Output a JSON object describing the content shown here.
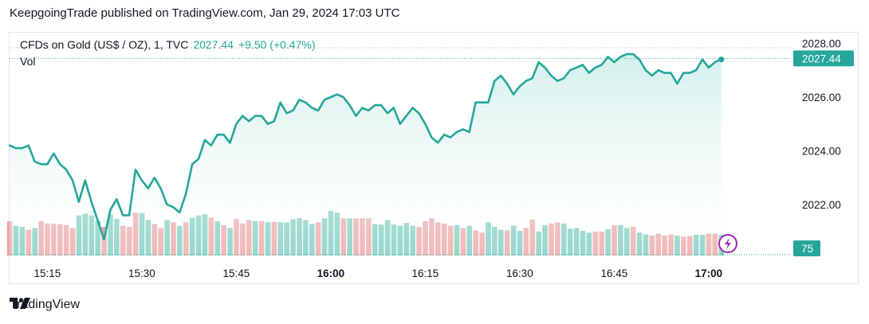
{
  "header": {
    "text": "KeepgoingTrade published on TradingView.com, Jan 29, 2024 17:03 UTC"
  },
  "legend": {
    "symbol": "CFDs on Gold (US$ / OZ), 1, TVC",
    "price": "2027.44",
    "change": "+9.50 (+0.47%)",
    "volume_label": "Vol"
  },
  "footer": {
    "brand": "TradingView"
  },
  "colors": {
    "line": "#26a69a",
    "area_top": "#cdeee8",
    "vol_up": "#7fcdbf",
    "vol_down": "#eca7a7",
    "price_tag": "#26a69a",
    "prev_close_line": "#f7a9a7",
    "bolt": "#9c27b0"
  },
  "chart_data": {
    "type": "line",
    "title": "CFDs on Gold (US$ / OZ), 1, TVC",
    "x_start": "15:09",
    "x_step_minutes": 1,
    "x_ticks": [
      "15:15",
      "15:30",
      "15:45",
      "16:00",
      "16:15",
      "16:30",
      "16:45",
      "17:00"
    ],
    "bold_ticks": [
      "16:00",
      "17:00"
    ],
    "y_ticks": [
      2022.0,
      2024.0,
      2026.0,
      2028.0
    ],
    "ylim": [
      2020.1,
      2028.4
    ],
    "last_price_label": "2027.44",
    "volume_last_label": "75",
    "prices": [
      2024.2,
      2024.1,
      2024.1,
      2024.2,
      2023.6,
      2023.5,
      2023.5,
      2023.9,
      2023.5,
      2023.3,
      2022.9,
      2022.1,
      2022.9,
      2022.1,
      2021.4,
      2020.7,
      2021.8,
      2022.2,
      2021.6,
      2021.6,
      2023.3,
      2022.9,
      2022.6,
      2023.0,
      2022.6,
      2022.0,
      2021.9,
      2021.7,
      2022.4,
      2023.5,
      2023.7,
      2024.4,
      2024.2,
      2024.6,
      2024.6,
      2024.3,
      2025.0,
      2025.3,
      2025.1,
      2025.3,
      2025.3,
      2025.0,
      2025.1,
      2025.8,
      2025.4,
      2025.5,
      2025.9,
      2025.8,
      2025.6,
      2025.5,
      2025.9,
      2026.0,
      2026.1,
      2026.0,
      2025.7,
      2025.3,
      2025.6,
      2025.5,
      2025.7,
      2025.7,
      2025.4,
      2025.6,
      2025.0,
      2025.3,
      2025.6,
      2025.4,
      2025.0,
      2024.5,
      2024.3,
      2024.6,
      2024.5,
      2024.7,
      2024.8,
      2024.7,
      2025.8,
      2025.8,
      2025.8,
      2026.6,
      2026.8,
      2026.5,
      2026.1,
      2026.4,
      2026.6,
      2026.7,
      2027.3,
      2027.1,
      2026.8,
      2026.6,
      2026.7,
      2027.0,
      2027.1,
      2027.2,
      2026.9,
      2027.1,
      2027.2,
      2027.5,
      2027.3,
      2027.5,
      2027.6,
      2027.6,
      2027.4,
      2027.0,
      2026.8,
      2027.0,
      2026.9,
      2026.9,
      2026.5,
      2026.9,
      2026.9,
      2027.0,
      2027.4,
      2027.1,
      2027.3,
      2027.4
    ],
    "volumes": [
      [
        60,
        0
      ],
      [
        52,
        1
      ],
      [
        50,
        1
      ],
      [
        45,
        0
      ],
      [
        48,
        1
      ],
      [
        60,
        0
      ],
      [
        56,
        0
      ],
      [
        55,
        0
      ],
      [
        55,
        0
      ],
      [
        53,
        0
      ],
      [
        48,
        0
      ],
      [
        70,
        1
      ],
      [
        73,
        1
      ],
      [
        70,
        1
      ],
      [
        60,
        1
      ],
      [
        50,
        0
      ],
      [
        72,
        1
      ],
      [
        64,
        1
      ],
      [
        52,
        0
      ],
      [
        50,
        0
      ],
      [
        75,
        0
      ],
      [
        74,
        1
      ],
      [
        62,
        1
      ],
      [
        55,
        0
      ],
      [
        48,
        0
      ],
      [
        62,
        1
      ],
      [
        58,
        0
      ],
      [
        52,
        1
      ],
      [
        58,
        0
      ],
      [
        66,
        1
      ],
      [
        70,
        1
      ],
      [
        72,
        1
      ],
      [
        66,
        0
      ],
      [
        60,
        1
      ],
      [
        53,
        0
      ],
      [
        48,
        1
      ],
      [
        64,
        0
      ],
      [
        56,
        0
      ],
      [
        62,
        0
      ],
      [
        60,
        1
      ],
      [
        60,
        0
      ],
      [
        58,
        1
      ],
      [
        59,
        0
      ],
      [
        58,
        1
      ],
      [
        58,
        1
      ],
      [
        63,
        1
      ],
      [
        65,
        1
      ],
      [
        62,
        1
      ],
      [
        55,
        1
      ],
      [
        58,
        0
      ],
      [
        65,
        1
      ],
      [
        78,
        1
      ],
      [
        75,
        1
      ],
      [
        65,
        0
      ],
      [
        65,
        1
      ],
      [
        65,
        0
      ],
      [
        65,
        0
      ],
      [
        65,
        0
      ],
      [
        55,
        1
      ],
      [
        54,
        1
      ],
      [
        62,
        1
      ],
      [
        54,
        1
      ],
      [
        52,
        1
      ],
      [
        57,
        1
      ],
      [
        52,
        1
      ],
      [
        50,
        0
      ],
      [
        60,
        0
      ],
      [
        65,
        0
      ],
      [
        58,
        0
      ],
      [
        56,
        0
      ],
      [
        52,
        0
      ],
      [
        53,
        1
      ],
      [
        48,
        0
      ],
      [
        52,
        1
      ],
      [
        44,
        0
      ],
      [
        40,
        0
      ],
      [
        58,
        1
      ],
      [
        50,
        1
      ],
      [
        45,
        1
      ],
      [
        44,
        0
      ],
      [
        52,
        1
      ],
      [
        43,
        1
      ],
      [
        48,
        0
      ],
      [
        63,
        0
      ],
      [
        42,
        1
      ],
      [
        53,
        1
      ],
      [
        56,
        0
      ],
      [
        58,
        0
      ],
      [
        56,
        1
      ],
      [
        47,
        1
      ],
      [
        48,
        1
      ],
      [
        43,
        1
      ],
      [
        40,
        1
      ],
      [
        42,
        0
      ],
      [
        42,
        0
      ],
      [
        46,
        1
      ],
      [
        53,
        0
      ],
      [
        53,
        1
      ],
      [
        48,
        1
      ],
      [
        50,
        0
      ],
      [
        40,
        1
      ],
      [
        37,
        1
      ],
      [
        35,
        0
      ],
      [
        38,
        0
      ],
      [
        35,
        0
      ],
      [
        37,
        0
      ],
      [
        35,
        1
      ],
      [
        33,
        0
      ],
      [
        34,
        0
      ],
      [
        36,
        1
      ],
      [
        36,
        1
      ],
      [
        38,
        0
      ],
      [
        38,
        0
      ],
      [
        36,
        1
      ]
    ]
  }
}
